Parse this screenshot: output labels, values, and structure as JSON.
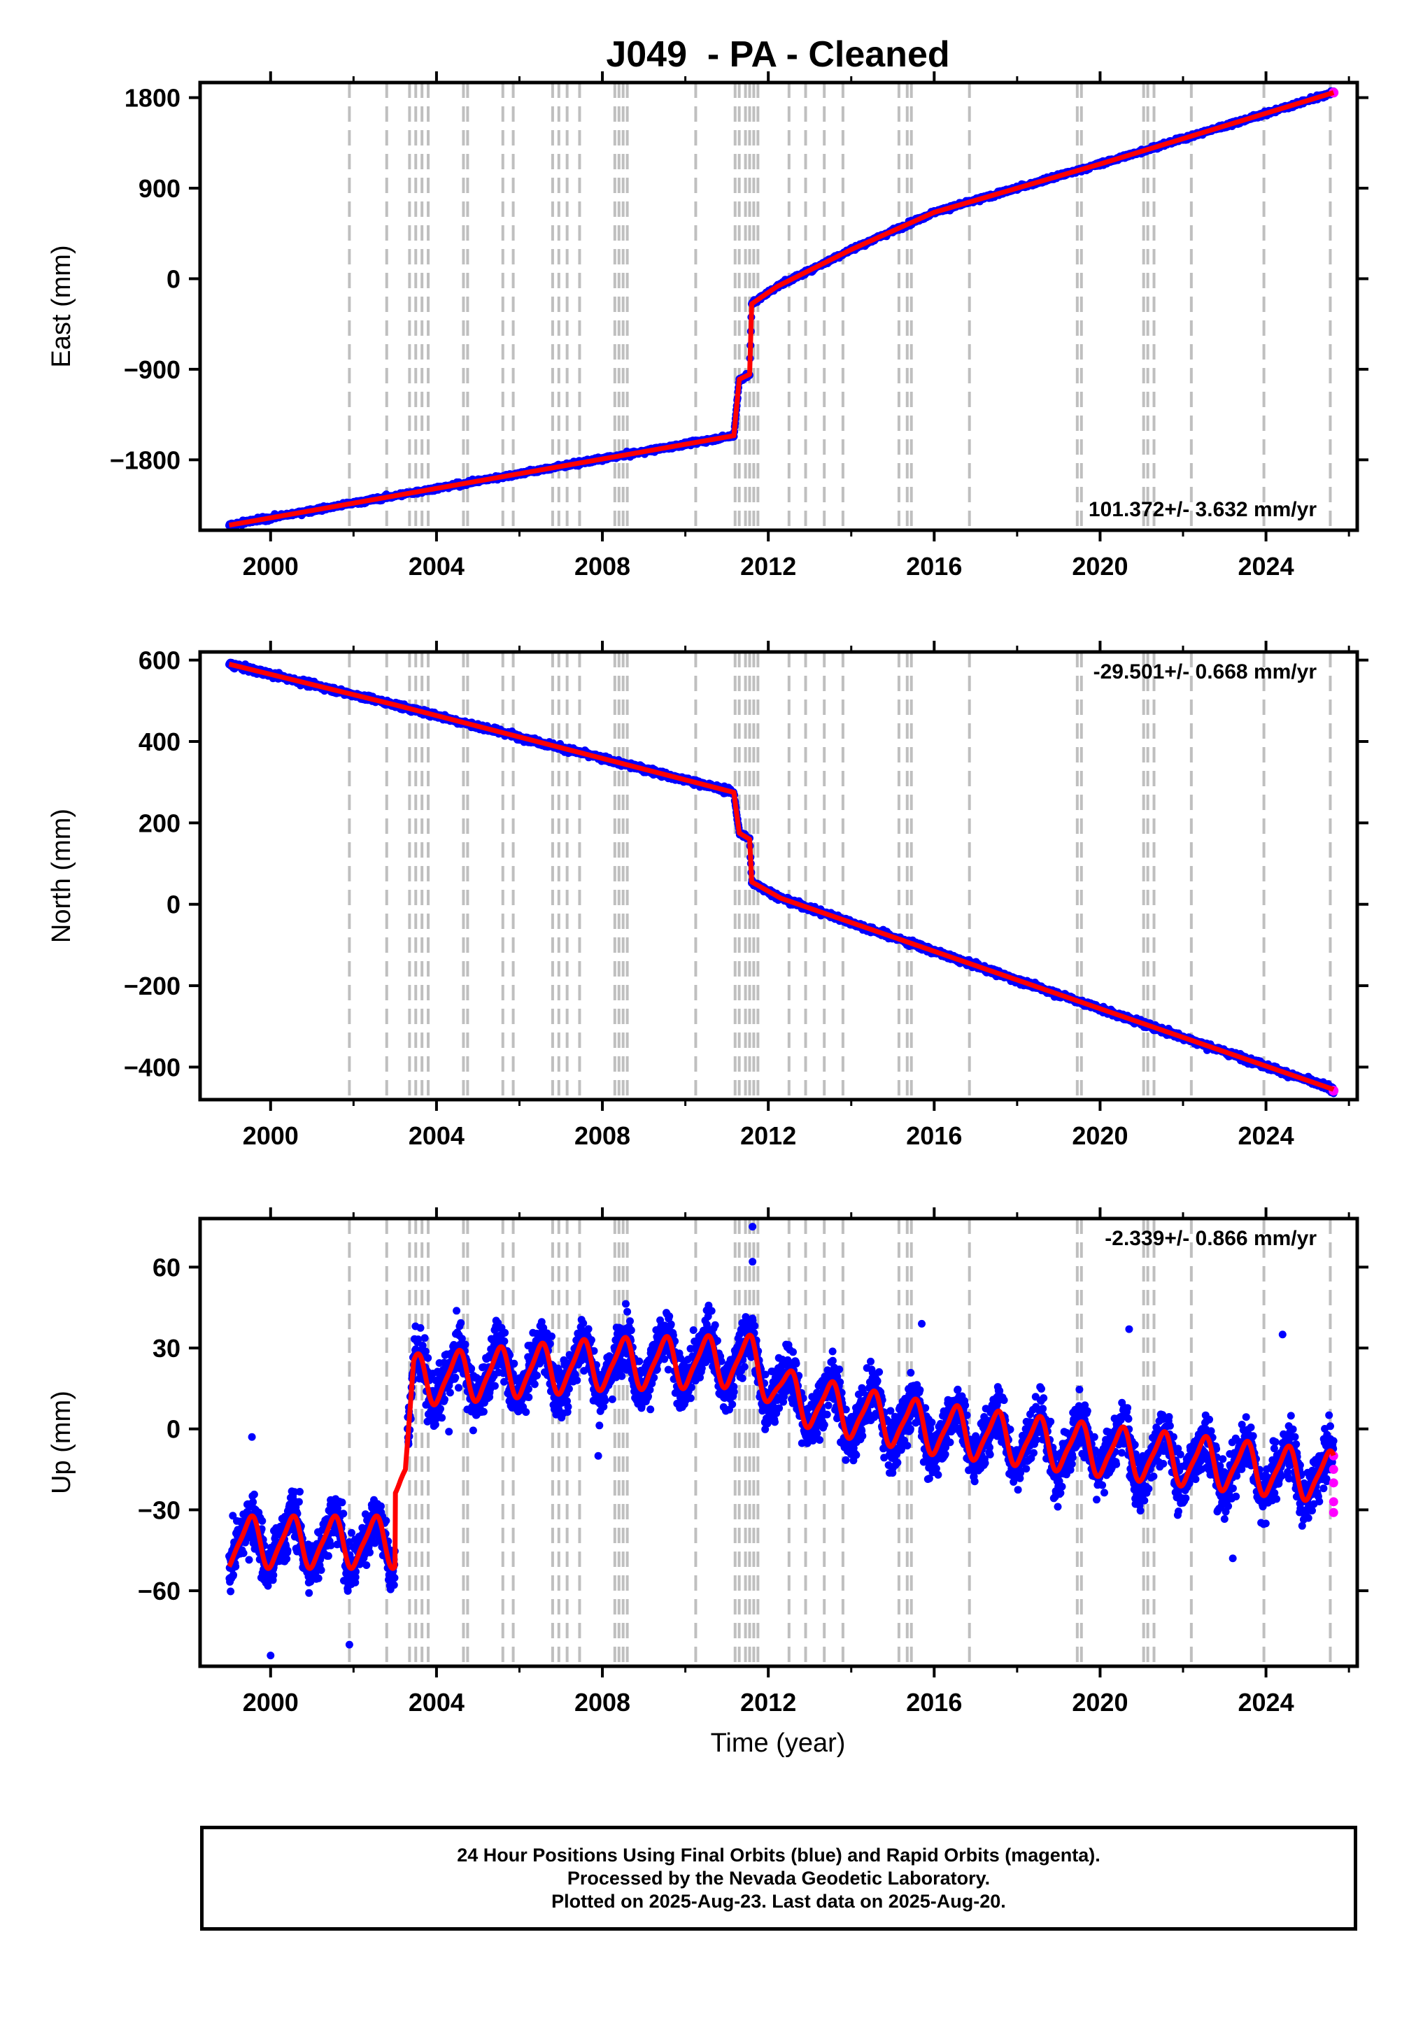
{
  "page": {
    "title": "J049  - PA - Cleaned",
    "xlabel": "Time (year)"
  },
  "colors": {
    "final_orbits": "#0000ff",
    "rapid_orbits": "#ff00ff",
    "model": "#ff0000",
    "event_lines": "#bfbfbf"
  },
  "footer": {
    "line1": "24 Hour Positions Using Final Orbits (blue) and Rapid Orbits (magenta).",
    "line2": "Processed by the Nevada Geodetic Laboratory.",
    "line3": "Plotted on 2025-Aug-23. Last data on 2025-Aug-20."
  },
  "chart_data": [
    {
      "type": "scatter",
      "component": "east",
      "title": "J049  - PA - Cleaned",
      "ylabel": "East (mm)",
      "xlim": [
        1998.3,
        2026.2
      ],
      "ylim": [
        -2500,
        1950
      ],
      "xticks": [
        2000,
        2004,
        2008,
        2012,
        2016,
        2020,
        2024
      ],
      "yticks": [
        -1800,
        -900,
        0,
        900,
        1800
      ],
      "ytick_labels": [
        "−1800",
        "−900",
        "0",
        "900",
        "1800"
      ],
      "rate_label": "101.372+/- 3.632 mm/yr",
      "rate_position": "bottom-right",
      "segments": [
        {
          "x": [
            1999.0,
            2011.17
          ],
          "y": [
            -2450,
            -1560
          ]
        },
        {
          "x": [
            2011.17,
            2011.3
          ],
          "y": [
            -1560,
            -1000
          ]
        },
        {
          "x": [
            2011.3,
            2011.55
          ],
          "y": [
            -1000,
            -950
          ]
        },
        {
          "x": [
            2011.55,
            2011.6
          ],
          "y": [
            -950,
            -250
          ]
        },
        {
          "x": [
            2011.6,
            2012.2
          ],
          "y": [
            -250,
            -80
          ]
        },
        {
          "x": [
            2012.2,
            2014.0
          ],
          "y": [
            -80,
            290
          ]
        },
        {
          "x": [
            2014.0,
            2016.0
          ],
          "y": [
            290,
            660
          ]
        },
        {
          "x": [
            2016.0,
            2020.0
          ],
          "y": [
            660,
            1140
          ]
        },
        {
          "x": [
            2020.0,
            2025.63
          ],
          "y": [
            1140,
            1850
          ]
        }
      ],
      "rapid_last": {
        "x": 2025.63,
        "y": 1850
      }
    },
    {
      "type": "scatter",
      "component": "north",
      "ylabel": "North (mm)",
      "xlim": [
        1998.3,
        2026.2
      ],
      "ylim": [
        -480,
        620
      ],
      "xticks": [
        2000,
        2004,
        2008,
        2012,
        2016,
        2020,
        2024
      ],
      "yticks": [
        -400,
        -200,
        0,
        200,
        400,
        600
      ],
      "ytick_labels": [
        "−400",
        "−200",
        "0",
        "200",
        "400",
        "600"
      ],
      "rate_label": "-29.501+/- 0.668 mm/yr",
      "rate_position": "top-right",
      "segments": [
        {
          "x": [
            1999.0,
            2003.0
          ],
          "y": [
            590,
            490
          ]
        },
        {
          "x": [
            2003.0,
            2011.17
          ],
          "y": [
            490,
            275
          ]
        },
        {
          "x": [
            2011.17,
            2011.3
          ],
          "y": [
            275,
            175
          ]
        },
        {
          "x": [
            2011.3,
            2011.55
          ],
          "y": [
            175,
            160
          ]
        },
        {
          "x": [
            2011.55,
            2011.6
          ],
          "y": [
            160,
            55
          ]
        },
        {
          "x": [
            2011.6,
            2012.3
          ],
          "y": [
            55,
            15
          ]
        },
        {
          "x": [
            2012.3,
            2025.63
          ],
          "y": [
            15,
            -455
          ]
        }
      ],
      "rapid_last": {
        "x": 2025.63,
        "y": -458
      }
    },
    {
      "type": "scatter",
      "component": "up",
      "ylabel": "Up (mm)",
      "xlabel": "Time (year)",
      "xlim": [
        1998.3,
        2026.2
      ],
      "ylim": [
        -88,
        78
      ],
      "xticks": [
        2000,
        2004,
        2008,
        2012,
        2016,
        2020,
        2024
      ],
      "yticks": [
        -60,
        -30,
        0,
        30,
        60
      ],
      "ytick_labels": [
        "−60",
        "−30",
        "0",
        "30",
        "60"
      ],
      "rate_label": "-2.339+/- 0.866 mm/yr",
      "rate_position": "top-right",
      "seasonal_amplitude_mm": 9,
      "model_knots": {
        "x": [
          1999.0,
          2003.0,
          2003.01,
          2003.25,
          2003.45,
          2005.0,
          2008.0,
          2011.0,
          2011.6,
          2012.5,
          2014.0,
          2016.0,
          2020.0,
          2025.63
        ],
        "y": [
          -42,
          -42,
          -15,
          -15,
          18,
          20,
          24,
          25,
          25,
          12,
          6,
          0,
          -8,
          -18
        ]
      },
      "outliers": [
        {
          "x": 2011.62,
          "y": 75
        },
        {
          "x": 2011.62,
          "y": 62
        },
        {
          "x": 1999.55,
          "y": -3
        },
        {
          "x": 2007.9,
          "y": -10
        },
        {
          "x": 2004.3,
          "y": -1
        },
        {
          "x": 2015.7,
          "y": 39
        },
        {
          "x": 2020.7,
          "y": 37
        },
        {
          "x": 2024.4,
          "y": 35
        },
        {
          "x": 2000.0,
          "y": -84
        },
        {
          "x": 2001.9,
          "y": -80
        },
        {
          "x": 2023.2,
          "y": -48
        }
      ],
      "rapid_points": [
        {
          "x": 2025.63,
          "y": -10
        },
        {
          "x": 2025.63,
          "y": -15
        },
        {
          "x": 2025.63,
          "y": -20
        },
        {
          "x": 2025.63,
          "y": -27
        },
        {
          "x": 2025.63,
          "y": -31
        }
      ]
    }
  ],
  "event_lines": [
    2001.9,
    2002.8,
    2003.35,
    2003.5,
    2003.65,
    2003.8,
    2004.65,
    2004.75,
    2005.6,
    2005.85,
    2006.8,
    2006.95,
    2007.15,
    2007.45,
    2008.3,
    2008.4,
    2008.5,
    2008.6,
    2010.25,
    2011.2,
    2011.3,
    2011.45,
    2011.55,
    2011.65,
    2011.75,
    2012.5,
    2012.9,
    2013.35,
    2013.8,
    2015.15,
    2015.35,
    2015.45,
    2016.85,
    2019.45,
    2019.55,
    2021.05,
    2021.15,
    2021.3,
    2022.2,
    2023.95,
    2025.55
  ]
}
